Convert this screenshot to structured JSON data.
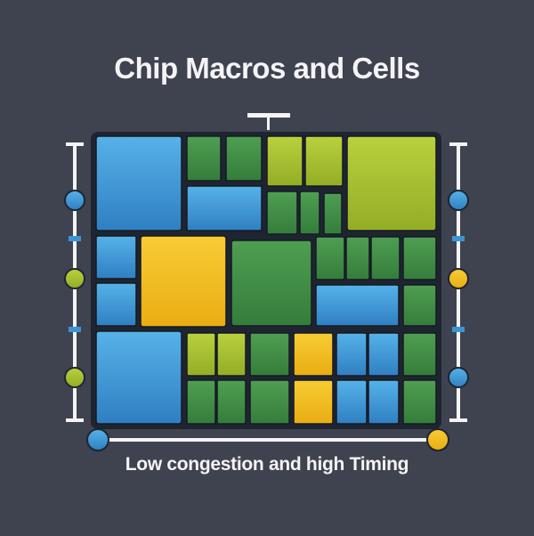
{
  "title": "Chip Macros and Cells",
  "caption": "Low congestion and high Timing",
  "colors": {
    "background": "#3f4350",
    "frame": "#1f2530",
    "blue": "#3b95d3",
    "green": "#3f8e46",
    "lime": "#a8c232",
    "yellow": "#f2bd1d",
    "rail": "#f4f4f6"
  }
}
